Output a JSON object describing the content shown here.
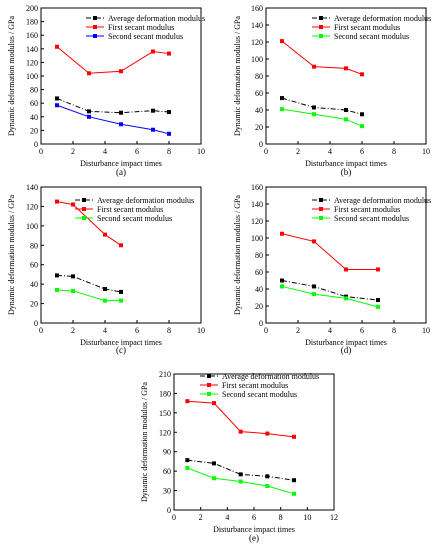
{
  "figure": {
    "series_colors": {
      "Average deformation modulus": "#000000",
      "First secant modulus": "#ff0000",
      "Second secant modulus": "#0000ff"
    }
  },
  "chart_data": [
    {
      "panel_label": "(a)",
      "type": "line",
      "xlabel": "Disturbance impact times",
      "ylabel": "Dynamic deformation modulus / GPa",
      "xlim": [
        0,
        10
      ],
      "ylim": [
        0,
        200
      ],
      "xticks": [
        0,
        2,
        4,
        6,
        8,
        10
      ],
      "yticks": [
        0,
        20,
        40,
        60,
        80,
        100,
        120,
        140,
        160,
        180,
        200
      ],
      "legend_position": "top-right",
      "series": [
        {
          "name": "Average deformation modulus",
          "color": "#000000",
          "style": "dashdot",
          "x": [
            1,
            3,
            5,
            7,
            8
          ],
          "y": [
            67,
            48,
            46,
            49,
            47
          ]
        },
        {
          "name": "First secant modulus",
          "color": "#ff0000",
          "style": "solid",
          "x": [
            1,
            3,
            5,
            7,
            8
          ],
          "y": [
            143,
            104,
            107,
            136,
            133
          ]
        },
        {
          "name": "Second secant modulus",
          "color": "#0000ff",
          "style": "solid",
          "x": [
            1,
            3,
            5,
            7,
            8
          ],
          "y": [
            57,
            40,
            29,
            21,
            15
          ]
        }
      ]
    },
    {
      "panel_label": "(b)",
      "type": "line",
      "xlabel": "Disturbance impact times",
      "ylabel": "Dynamic deformation modulus / GPa",
      "xlim": [
        0,
        10
      ],
      "ylim": [
        0,
        160
      ],
      "xticks": [
        0,
        2,
        4,
        6,
        8,
        10
      ],
      "yticks": [
        0,
        20,
        40,
        60,
        80,
        100,
        120,
        140,
        160
      ],
      "legend_position": "top-right",
      "series": [
        {
          "name": "Average deformation modulus",
          "color": "#000000",
          "style": "dashdot",
          "x": [
            1,
            3,
            5,
            6
          ],
          "y": [
            54,
            43,
            40,
            35
          ]
        },
        {
          "name": "First secant modulus",
          "color": "#ff0000",
          "style": "solid",
          "x": [
            1,
            3,
            5,
            6
          ],
          "y": [
            121,
            91,
            89,
            82
          ]
        },
        {
          "name": "Second secant modulus",
          "color": "#00ff00",
          "style": "solid",
          "x": [
            1,
            3,
            5,
            6
          ],
          "y": [
            41,
            35,
            29,
            21
          ]
        }
      ]
    },
    {
      "panel_label": "(c)",
      "type": "line",
      "xlabel": "Disturbance impact times",
      "ylabel": "Dynamic deformation modulus / GPa",
      "xlim": [
        0,
        10
      ],
      "ylim": [
        0,
        140
      ],
      "xticks": [
        0,
        2,
        4,
        6,
        8,
        10
      ],
      "yticks": [
        0,
        20,
        40,
        60,
        80,
        100,
        120,
        140
      ],
      "legend_position": "top-right",
      "series": [
        {
          "name": "Average deformation modulus",
          "color": "#000000",
          "style": "dashdot",
          "x": [
            1,
            2,
            4,
            5
          ],
          "y": [
            49,
            48,
            35,
            32
          ]
        },
        {
          "name": "First secant modulus",
          "color": "#ff0000",
          "style": "solid",
          "x": [
            1,
            2,
            4,
            5
          ],
          "y": [
            125,
            122,
            91,
            80
          ]
        },
        {
          "name": "Second secant modulus",
          "color": "#00ff00",
          "style": "solid",
          "x": [
            1,
            2,
            4,
            5
          ],
          "y": [
            34,
            33,
            23,
            23
          ]
        }
      ]
    },
    {
      "panel_label": "(d)",
      "type": "line",
      "xlabel": "Disturbance impact times",
      "ylabel": "Dynamic deformation modulus / GPa",
      "xlim": [
        0,
        10
      ],
      "ylim": [
        0,
        160
      ],
      "xticks": [
        0,
        2,
        4,
        6,
        8,
        10
      ],
      "yticks": [
        0,
        20,
        40,
        60,
        80,
        100,
        120,
        140,
        160
      ],
      "legend_position": "top-right",
      "series": [
        {
          "name": "Average deformation modulus",
          "color": "#000000",
          "style": "dashdot",
          "x": [
            1,
            3,
            5,
            7
          ],
          "y": [
            50,
            43,
            31,
            27
          ]
        },
        {
          "name": "First secant modulus",
          "color": "#ff0000",
          "style": "solid",
          "x": [
            1,
            3,
            5,
            7
          ],
          "y": [
            105,
            96,
            63,
            63
          ]
        },
        {
          "name": "Second secant modulus",
          "color": "#00ff00",
          "style": "solid",
          "x": [
            1,
            3,
            5,
            7
          ],
          "y": [
            43,
            34,
            29,
            19
          ]
        }
      ]
    },
    {
      "panel_label": "(e)",
      "type": "line",
      "xlabel": "Disturbance impact times",
      "ylabel": "Dynamic deformation modulus / GPa",
      "xlim": [
        0,
        12
      ],
      "ylim": [
        0,
        210
      ],
      "xticks": [
        0,
        2,
        4,
        6,
        8,
        10,
        12
      ],
      "yticks": [
        0,
        30,
        60,
        90,
        120,
        150,
        180,
        210
      ],
      "legend_position": "top-right",
      "series": [
        {
          "name": "Average deformation modulus",
          "color": "#000000",
          "style": "dashdot",
          "x": [
            1,
            3,
            5,
            7,
            9
          ],
          "y": [
            77,
            72,
            55,
            52,
            46
          ]
        },
        {
          "name": "First secant modulus",
          "color": "#ff0000",
          "style": "solid",
          "x": [
            1,
            3,
            5,
            7,
            9
          ],
          "y": [
            168,
            165,
            121,
            118,
            113
          ]
        },
        {
          "name": "Second secant modulus",
          "color": "#00ff00",
          "style": "solid",
          "x": [
            1,
            3,
            5,
            7,
            9
          ],
          "y": [
            65,
            49,
            44,
            37,
            25
          ]
        }
      ]
    }
  ]
}
